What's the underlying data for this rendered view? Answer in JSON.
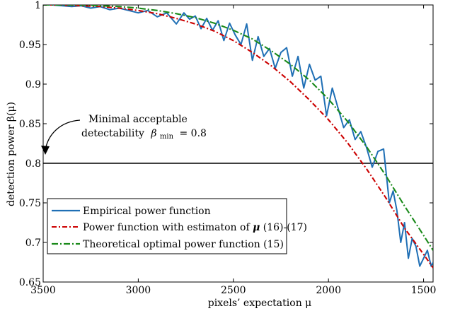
{
  "chart_data": {
    "type": "line",
    "xlabel": "pixels’ expectation μ",
    "ylabel": "detection power β(μ)",
    "xlim": [
      3500,
      1450
    ],
    "ylim": [
      0.65,
      1.0
    ],
    "x_reversed": true,
    "xticks": [
      3500,
      3000,
      2500,
      2000,
      1500
    ],
    "yticks": [
      0.65,
      0.7,
      0.75,
      0.8,
      0.85,
      0.9,
      0.95,
      1
    ],
    "x_tick_labels": [
      "3500",
      "3000",
      "2500",
      "2000",
      "1500"
    ],
    "y_tick_labels": [
      "0.65",
      "0.7",
      "0.75",
      "0.8",
      "0.85",
      "0.9",
      "0.95",
      "1"
    ],
    "grid": false,
    "legend_position": "bottom-left",
    "annotation": {
      "line1": "Minimal acceptable",
      "line2_prefix": "detectability",
      "beta_symbol": "β",
      "beta_sub": "min",
      "line2_value": "= 0.8"
    },
    "threshold": 0.8,
    "series": [
      {
        "name": "Empirical power function",
        "color": "#1f6fb5",
        "style": "solid",
        "x": [
          3500,
          3450,
          3400,
          3350,
          3300,
          3250,
          3200,
          3150,
          3100,
          3050,
          3000,
          2950,
          2900,
          2850,
          2800,
          2760,
          2730,
          2700,
          2670,
          2640,
          2610,
          2580,
          2550,
          2520,
          2490,
          2460,
          2430,
          2400,
          2370,
          2340,
          2310,
          2280,
          2250,
          2220,
          2190,
          2160,
          2130,
          2100,
          2070,
          2040,
          2010,
          1980,
          1950,
          1920,
          1890,
          1860,
          1830,
          1800,
          1770,
          1740,
          1710,
          1680,
          1660,
          1640,
          1620,
          1600,
          1580,
          1560,
          1540,
          1520,
          1500,
          1480,
          1460,
          1450
        ],
        "y": [
          1.0,
          1.0,
          0.999,
          0.998,
          0.999,
          0.996,
          0.998,
          0.994,
          0.996,
          0.993,
          0.99,
          0.993,
          0.985,
          0.99,
          0.976,
          0.99,
          0.982,
          0.986,
          0.97,
          0.983,
          0.968,
          0.98,
          0.955,
          0.977,
          0.962,
          0.95,
          0.976,
          0.93,
          0.96,
          0.935,
          0.945,
          0.92,
          0.94,
          0.946,
          0.91,
          0.935,
          0.895,
          0.925,
          0.905,
          0.91,
          0.86,
          0.895,
          0.87,
          0.845,
          0.855,
          0.83,
          0.84,
          0.82,
          0.795,
          0.815,
          0.818,
          0.75,
          0.765,
          0.74,
          0.7,
          0.725,
          0.68,
          0.705,
          0.695,
          0.67,
          0.68,
          0.69,
          0.67,
          0.675
        ]
      },
      {
        "name": "Power function with estimaton of μ (16)-(17)",
        "legend_suffix": " (16)-(17)",
        "legend_prefix": "Power function with estimaton of ",
        "legend_symbol": "μ",
        "color": "#cc0000",
        "style": "dashdot",
        "x": [
          3500,
          3400,
          3300,
          3200,
          3100,
          3000,
          2900,
          2800,
          2700,
          2600,
          2500,
          2400,
          2300,
          2200,
          2100,
          2000,
          1900,
          1800,
          1700,
          1600,
          1500,
          1450
        ],
        "y": [
          1.0,
          1.0,
          0.999,
          0.998,
          0.996,
          0.993,
          0.989,
          0.983,
          0.976,
          0.967,
          0.955,
          0.94,
          0.923,
          0.903,
          0.88,
          0.855,
          0.826,
          0.793,
          0.757,
          0.718,
          0.685,
          0.668
        ]
      },
      {
        "name": "Theoretical optimal power function (15)",
        "color": "#1a8a1a",
        "style": "dashdot",
        "x": [
          3500,
          3400,
          3300,
          3200,
          3100,
          3000,
          2900,
          2800,
          2700,
          2600,
          2500,
          2400,
          2300,
          2200,
          2100,
          2000,
          1900,
          1800,
          1700,
          1600,
          1500,
          1450
        ],
        "y": [
          1.0,
          1.0,
          1.0,
          0.999,
          0.998,
          0.996,
          0.993,
          0.989,
          0.984,
          0.977,
          0.968,
          0.957,
          0.942,
          0.925,
          0.905,
          0.881,
          0.853,
          0.821,
          0.785,
          0.746,
          0.709,
          0.69
        ]
      }
    ]
  }
}
